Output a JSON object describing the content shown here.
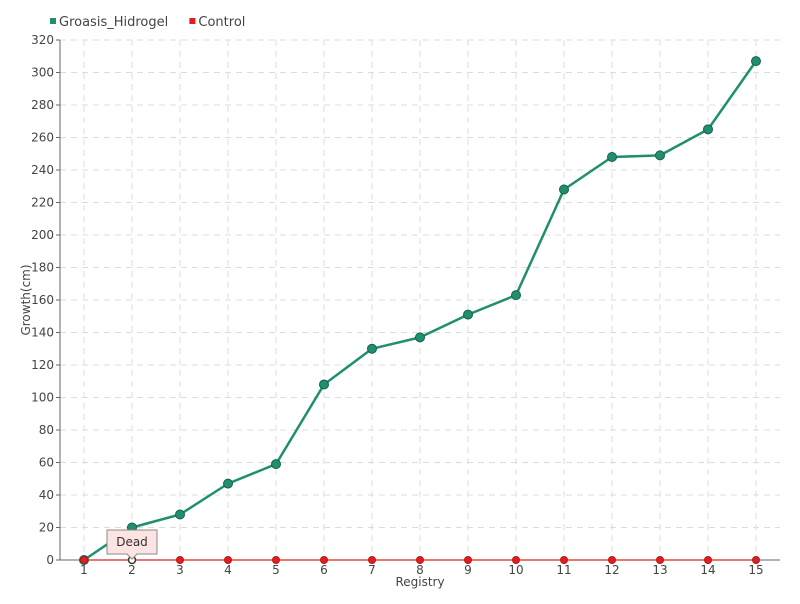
{
  "chart_data": {
    "type": "line",
    "title": "",
    "xlabel": "Registry",
    "ylabel": "Growth(cm)",
    "categories": [
      "1",
      "2",
      "3",
      "4",
      "5",
      "6",
      "7",
      "8",
      "9",
      "10",
      "11",
      "12",
      "13",
      "14",
      "15"
    ],
    "ylim": [
      0,
      320
    ],
    "yticks": [
      0,
      20,
      40,
      60,
      80,
      100,
      120,
      140,
      160,
      180,
      200,
      220,
      240,
      260,
      280,
      300,
      320
    ],
    "grid": true,
    "legend_position": "top-left",
    "series": [
      {
        "name": "Groasis_Hidrogel",
        "color": "#1f8f6f",
        "values": [
          0,
          20,
          28,
          47,
          59,
          108,
          130,
          137,
          151,
          163,
          228,
          248,
          249,
          265,
          307
        ]
      },
      {
        "name": "Control",
        "color": "#e02020",
        "values": [
          0,
          0,
          0,
          0,
          0,
          0,
          0,
          0,
          0,
          0,
          0,
          0,
          0,
          0,
          0
        ]
      }
    ],
    "annotations": [
      {
        "series": "Control",
        "x": "2",
        "text": "Dead"
      }
    ]
  }
}
